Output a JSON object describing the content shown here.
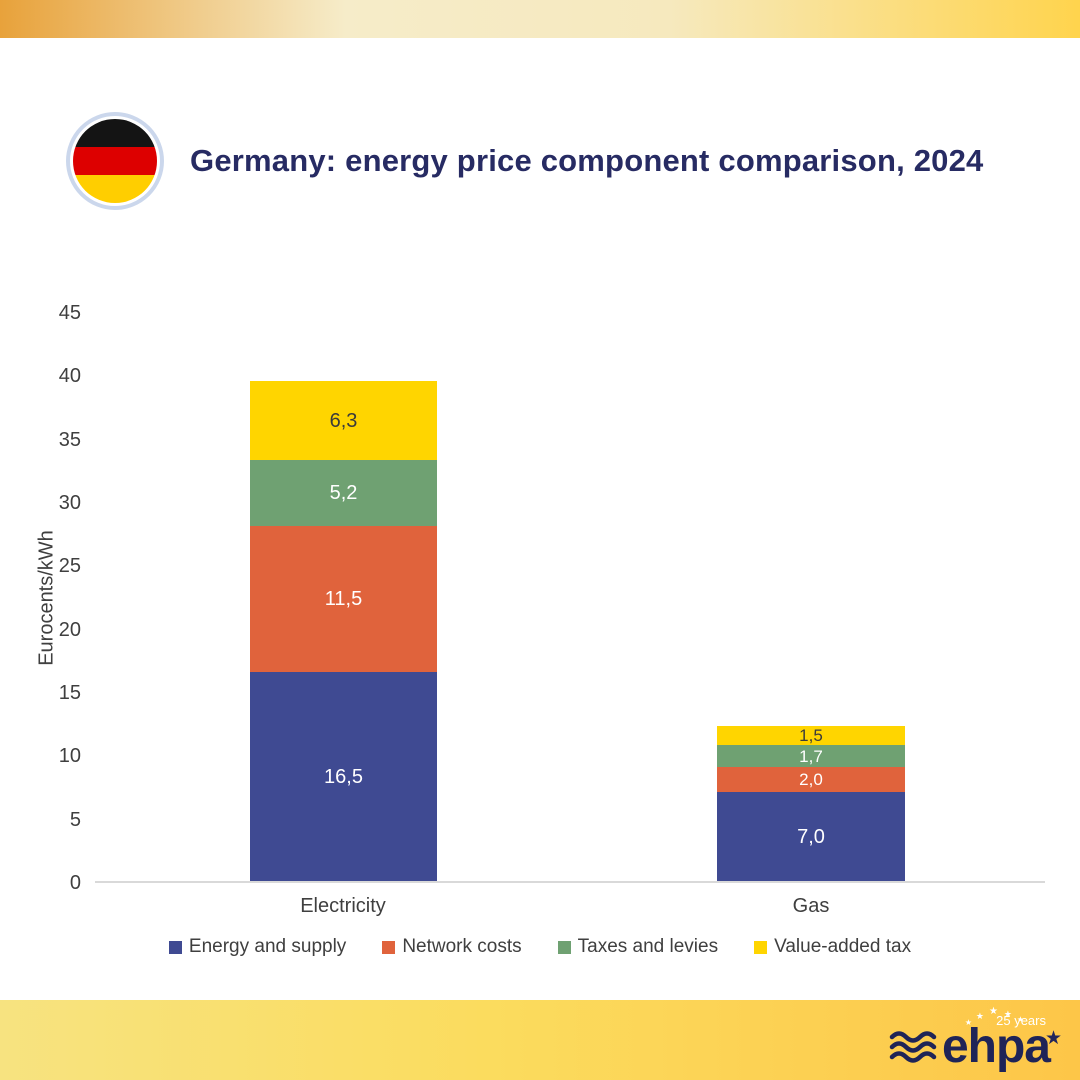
{
  "header": {
    "title": "Germany: energy price component comparison, 2024"
  },
  "chart_data": {
    "type": "bar",
    "stacked": true,
    "title": "Germany: energy price component comparison, 2024",
    "ylabel": "Eurocents/kWh",
    "ylim": [
      0,
      45
    ],
    "yticks": [
      0,
      5,
      10,
      15,
      20,
      25,
      30,
      35,
      40,
      45
    ],
    "grid": false,
    "legend_position": "bottom",
    "categories": [
      "Electricity",
      "Gas"
    ],
    "series": [
      {
        "name": "Energy and supply",
        "color": "#3F4A92",
        "label_color": "#FFFFFF",
        "values": [
          16.5,
          7.0
        ],
        "value_labels": [
          "16,5",
          "7,0"
        ]
      },
      {
        "name": "Network costs",
        "color": "#E0633C",
        "label_color": "#FFFFFF",
        "values": [
          11.5,
          2.0
        ],
        "value_labels": [
          "11,5",
          "2,0"
        ]
      },
      {
        "name": "Taxes and levies",
        "color": "#6FA172",
        "label_color": "#FFFFFF",
        "values": [
          5.2,
          1.7
        ],
        "value_labels": [
          "5,2",
          "1,7"
        ]
      },
      {
        "name": "Value-added tax",
        "color": "#FFD500",
        "label_color": "#3B3B3B",
        "values": [
          6.3,
          1.5
        ],
        "value_labels": [
          "6,3",
          "1,5"
        ]
      }
    ]
  },
  "footer": {
    "logo_text": "ehpa",
    "anniversary": "25 years"
  }
}
